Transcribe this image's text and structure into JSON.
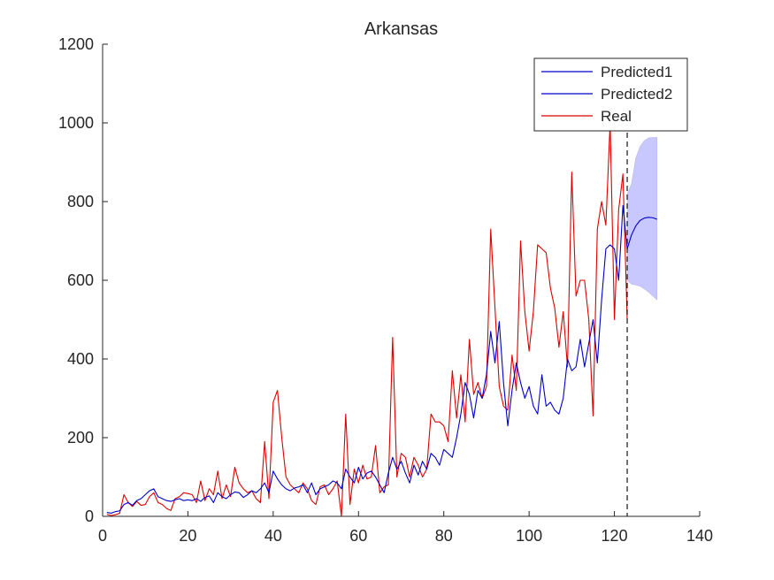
{
  "chart_data": {
    "type": "line",
    "title": "Arkansas",
    "xlabel": "",
    "ylabel": "",
    "xlim": [
      0,
      140
    ],
    "ylim": [
      0,
      1200
    ],
    "xticks": [
      0,
      20,
      40,
      60,
      80,
      100,
      120,
      140
    ],
    "yticks": [
      0,
      200,
      400,
      600,
      800,
      1000,
      1200
    ],
    "grid": false,
    "legend_position": "top-right",
    "forecast_start_x": 123,
    "series": [
      {
        "name": "Predicted1",
        "color": "#0000cc",
        "x": [
          1,
          2,
          3,
          4,
          5,
          6,
          7,
          8,
          9,
          10,
          11,
          12,
          13,
          14,
          15,
          16,
          17,
          18,
          19,
          20,
          21,
          22,
          23,
          24,
          25,
          26,
          27,
          28,
          29,
          30,
          31,
          32,
          33,
          34,
          35,
          36,
          37,
          38,
          39,
          40,
          41,
          42,
          43,
          44,
          45,
          46,
          47,
          48,
          49,
          50,
          51,
          52,
          53,
          54,
          55,
          56,
          57,
          58,
          59,
          60,
          61,
          62,
          63,
          64,
          65,
          66,
          67,
          68,
          69,
          70,
          71,
          72,
          73,
          74,
          75,
          76,
          77,
          78,
          79,
          80,
          81,
          82,
          83,
          84,
          85,
          86,
          87,
          88,
          89,
          90,
          91,
          92,
          93,
          94,
          95,
          96,
          97,
          98,
          99,
          100,
          101,
          102,
          103,
          104,
          105,
          106,
          107,
          108,
          109,
          110,
          111,
          112,
          113,
          114,
          115,
          116,
          117,
          118,
          119,
          120,
          121,
          122,
          123
        ],
        "values": [
          10,
          8,
          12,
          14,
          30,
          35,
          28,
          40,
          45,
          55,
          65,
          70,
          50,
          45,
          40,
          38,
          42,
          45,
          40,
          42,
          40,
          45,
          38,
          48,
          52,
          35,
          60,
          50,
          45,
          55,
          62,
          60,
          48,
          55,
          65,
          60,
          70,
          85,
          60,
          115,
          95,
          80,
          70,
          65,
          72,
          75,
          80,
          60,
          85,
          55,
          70,
          75,
          80,
          90,
          85,
          70,
          120,
          100,
          85,
          125,
          95,
          110,
          115,
          100,
          80,
          60,
          110,
          150,
          120,
          140,
          110,
          85,
          130,
          105,
          140,
          120,
          160,
          150,
          130,
          170,
          160,
          150,
          200,
          260,
          340,
          310,
          250,
          320,
          300,
          360,
          470,
          390,
          495,
          340,
          230,
          320,
          390,
          340,
          300,
          330,
          280,
          260,
          360,
          280,
          290,
          270,
          260,
          300,
          400,
          370,
          380,
          450,
          380,
          440,
          500,
          390,
          550,
          680,
          690,
          680,
          600,
          790,
          680
        ]
      },
      {
        "name": "Predicted2",
        "color": "#0000cc",
        "x": [
          123,
          124,
          125,
          126,
          127,
          128,
          129,
          130
        ],
        "values": [
          680,
          715,
          738,
          752,
          758,
          760,
          759,
          755
        ],
        "band_upper": [
          820,
          845,
          910,
          940,
          955,
          962,
          963,
          963
        ],
        "band_lower": [
          600,
          590,
          588,
          585,
          578,
          570,
          560,
          550
        ]
      },
      {
        "name": "Real",
        "color": "#dd0000",
        "x": [
          1,
          2,
          3,
          4,
          5,
          6,
          7,
          8,
          9,
          10,
          11,
          12,
          13,
          14,
          15,
          16,
          17,
          18,
          19,
          20,
          21,
          22,
          23,
          24,
          25,
          26,
          27,
          28,
          29,
          30,
          31,
          32,
          33,
          34,
          35,
          36,
          37,
          38,
          39,
          40,
          41,
          42,
          43,
          44,
          45,
          46,
          47,
          48,
          49,
          50,
          51,
          52,
          53,
          54,
          55,
          56,
          57,
          58,
          59,
          60,
          61,
          62,
          63,
          64,
          65,
          66,
          67,
          68,
          69,
          70,
          71,
          72,
          73,
          74,
          75,
          76,
          77,
          78,
          79,
          80,
          81,
          82,
          83,
          84,
          85,
          86,
          87,
          88,
          89,
          90,
          91,
          92,
          93,
          94,
          95,
          96,
          97,
          98,
          99,
          100,
          101,
          102,
          103,
          104,
          105,
          106,
          107,
          108,
          109,
          110,
          111,
          112,
          113,
          114,
          115,
          116,
          117,
          118,
          119,
          120,
          121,
          122,
          123
        ],
        "values": [
          5,
          2,
          4,
          8,
          55,
          35,
          25,
          38,
          28,
          30,
          50,
          60,
          35,
          30,
          20,
          15,
          45,
          50,
          60,
          58,
          55,
          35,
          90,
          40,
          70,
          55,
          115,
          45,
          80,
          50,
          125,
          85,
          70,
          60,
          65,
          45,
          35,
          190,
          45,
          290,
          320,
          200,
          100,
          80,
          70,
          60,
          85,
          70,
          40,
          30,
          75,
          80,
          55,
          70,
          90,
          0,
          260,
          30,
          120,
          85,
          130,
          95,
          100,
          180,
          60,
          75,
          80,
          455,
          100,
          160,
          150,
          100,
          150,
          130,
          100,
          120,
          260,
          240,
          240,
          230,
          190,
          370,
          250,
          360,
          240,
          450,
          310,
          340,
          300,
          330,
          730,
          530,
          330,
          280,
          270,
          410,
          320,
          700,
          520,
          420,
          520,
          690,
          680,
          670,
          580,
          530,
          430,
          520,
          380,
          875,
          560,
          600,
          600,
          500,
          255,
          730,
          800,
          740,
          1000,
          500,
          780,
          870,
          500
        ]
      }
    ]
  }
}
